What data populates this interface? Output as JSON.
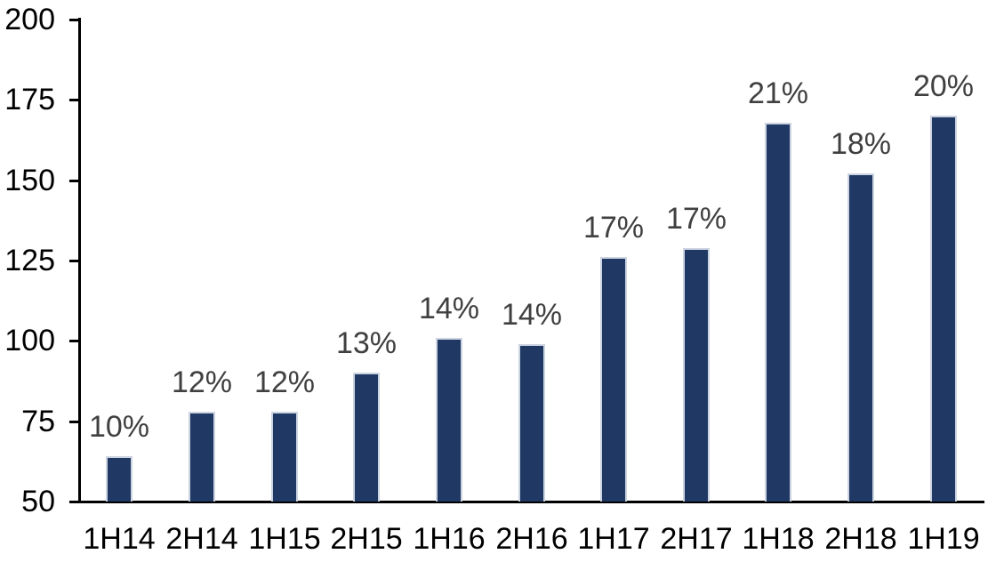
{
  "chart_data": {
    "type": "bar",
    "title": "",
    "xlabel": "",
    "ylabel": "",
    "categories": [
      "1H14",
      "2H14",
      "1H15",
      "2H15",
      "1H16",
      "2H16",
      "1H17",
      "2H17",
      "1H18",
      "2H18",
      "1H19"
    ],
    "values": [
      64,
      78,
      78,
      90,
      101,
      99,
      126,
      129,
      168,
      152,
      170
    ],
    "data_labels": [
      "10%",
      "12%",
      "12%",
      "13%",
      "14%",
      "14%",
      "17%",
      "17%",
      "21%",
      "18%",
      "20%"
    ],
    "ylim": [
      50,
      200
    ],
    "yticks": [
      200,
      175,
      150,
      125,
      100,
      75,
      50
    ],
    "grid": false,
    "legend": false,
    "colors": {
      "bar_fill": "#1f3864",
      "bar_border": "#ccd4e2",
      "data_label": "#404040",
      "axis": "#000000",
      "tick_label": "#000000",
      "background": "#ffffff"
    }
  }
}
